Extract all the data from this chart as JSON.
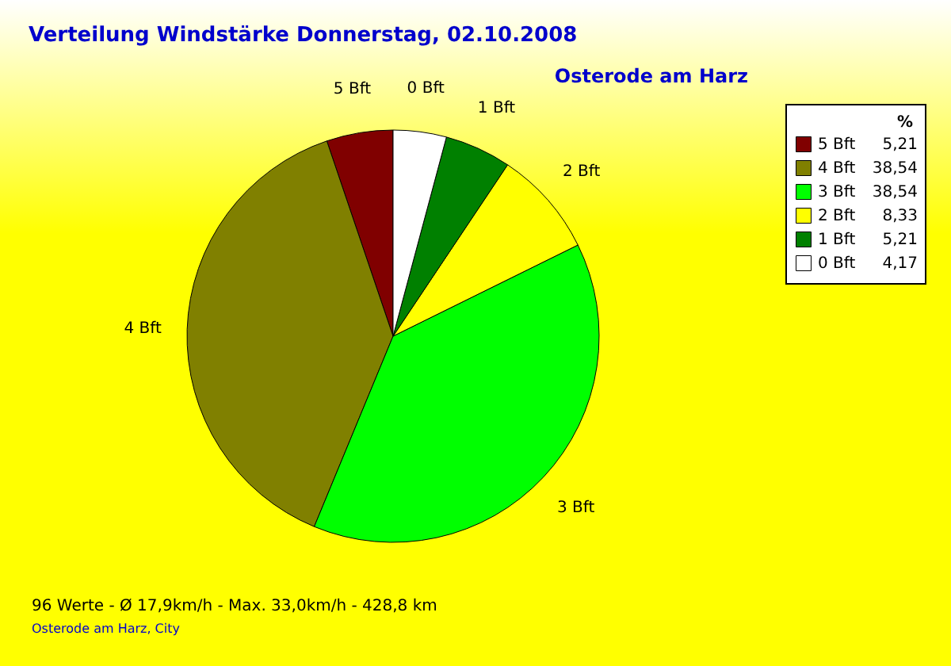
{
  "chart_data": {
    "type": "pie",
    "title": "Verteilung Windstärke  Donnerstag, 02.10.2008",
    "subtitle": "Osterode am Harz",
    "categories": [
      "5 Bft",
      "4 Bft",
      "3 Bft",
      "2 Bft",
      "1 Bft",
      "0 Bft"
    ],
    "values": [
      5.21,
      38.54,
      38.54,
      8.33,
      5.21,
      4.17
    ],
    "value_labels": [
      "5,21",
      "38,54",
      "38,54",
      "8,33",
      "5,21",
      "4,17"
    ],
    "colors": [
      "#800000",
      "#808000",
      "#00ff00",
      "#ffff00",
      "#008000",
      "#ffffff"
    ],
    "legend_title": "%",
    "legend": "top right",
    "annotations": [
      "96 Werte  -  Ø 17,9km/h  -  Max. 33,0km/h  -  428,8 km",
      "Osterode am Harz, City"
    ]
  }
}
